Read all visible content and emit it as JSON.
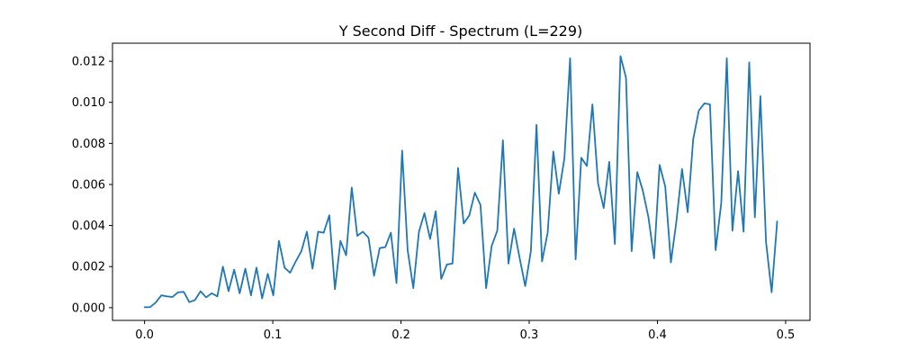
{
  "chart_data": {
    "type": "line",
    "title": "Y Second Diff - Spectrum (L=229)",
    "xlabel": "",
    "ylabel": "",
    "xlim": [
      -0.025,
      0.519
    ],
    "ylim": [
      -0.00062,
      0.01288
    ],
    "xticks": [
      0.0,
      0.1,
      0.2,
      0.3,
      0.4,
      0.5
    ],
    "xtick_labels": [
      "0.0",
      "0.1",
      "0.2",
      "0.3",
      "0.4",
      "0.5"
    ],
    "yticks": [
      0.0,
      0.002,
      0.004,
      0.006,
      0.008,
      0.01,
      0.012
    ],
    "ytick_labels": [
      "0.000",
      "0.002",
      "0.004",
      "0.006",
      "0.008",
      "0.010",
      "0.012"
    ],
    "grid": false,
    "color": "#1f77b4",
    "series": [
      {
        "x": [
          0.0,
          0.0044,
          0.0087,
          0.0131,
          0.0175,
          0.0218,
          0.0262,
          0.0306,
          0.0349,
          0.0393,
          0.0437,
          0.048,
          0.0524,
          0.0568,
          0.0611,
          0.0655,
          0.0699,
          0.0742,
          0.0786,
          0.083,
          0.0873,
          0.0917,
          0.0961,
          0.1004,
          0.1048,
          0.1092,
          0.1135,
          0.1179,
          0.1223,
          0.1266,
          0.131,
          0.1354,
          0.1397,
          0.1441,
          0.1485,
          0.1528,
          0.1572,
          0.1616,
          0.1659,
          0.1703,
          0.1747,
          0.179,
          0.1834,
          0.1878,
          0.1921,
          0.1965,
          0.2009,
          0.2052,
          0.2096,
          0.214,
          0.2183,
          0.2227,
          0.2271,
          0.2314,
          0.2358,
          0.2402,
          0.2445,
          0.2489,
          0.2533,
          0.2576,
          0.262,
          0.2664,
          0.2707,
          0.2751,
          0.2795,
          0.2838,
          0.2882,
          0.2926,
          0.2969,
          0.3013,
          0.3057,
          0.31,
          0.3144,
          0.3188,
          0.3231,
          0.3275,
          0.3319,
          0.3362,
          0.3406,
          0.345,
          0.3493,
          0.3537,
          0.3581,
          0.3624,
          0.3668,
          0.3712,
          0.3755,
          0.3799,
          0.3843,
          0.3886,
          0.393,
          0.3974,
          0.4017,
          0.4061,
          0.4105,
          0.4148,
          0.4192,
          0.4236,
          0.4279,
          0.4323,
          0.4367,
          0.441,
          0.4454,
          0.4498,
          0.4541,
          0.4585,
          0.4629,
          0.4672,
          0.4716,
          0.476,
          0.4803,
          0.4847,
          0.4891,
          0.4934
        ],
        "values": [
          2e-05,
          3e-05,
          0.00025,
          0.0006,
          0.00055,
          0.00052,
          0.00075,
          0.00077,
          0.00027,
          0.00037,
          0.0008,
          0.0005,
          0.0007,
          0.00055,
          0.002,
          0.0008,
          0.00185,
          0.0007,
          0.0019,
          0.0006,
          0.00195,
          0.00045,
          0.00165,
          0.0006,
          0.00325,
          0.00195,
          0.0017,
          0.00225,
          0.00275,
          0.0037,
          0.0019,
          0.0037,
          0.00365,
          0.0045,
          0.0009,
          0.00325,
          0.00255,
          0.00585,
          0.0035,
          0.0037,
          0.0034,
          0.00155,
          0.0029,
          0.00295,
          0.00365,
          0.0012,
          0.00765,
          0.0028,
          0.00095,
          0.0037,
          0.0046,
          0.00335,
          0.0047,
          0.0014,
          0.0021,
          0.00215,
          0.0068,
          0.0041,
          0.0045,
          0.0056,
          0.005,
          0.00095,
          0.003,
          0.00375,
          0.00815,
          0.00215,
          0.00385,
          0.0024,
          0.00105,
          0.00275,
          0.0089,
          0.00225,
          0.00365,
          0.0076,
          0.00555,
          0.0073,
          0.01215,
          0.00235,
          0.0073,
          0.0069,
          0.0099,
          0.00605,
          0.00485,
          0.0071,
          0.0031,
          0.01225,
          0.0112,
          0.00275,
          0.0066,
          0.0057,
          0.0044,
          0.0024,
          0.00695,
          0.0059,
          0.0022,
          0.0042,
          0.00675,
          0.00465,
          0.0082,
          0.0096,
          0.00995,
          0.0099,
          0.0028,
          0.0051,
          0.01215,
          0.00375,
          0.00665,
          0.0037,
          0.01195,
          0.0044,
          0.0103,
          0.0032,
          0.00075,
          0.0042
        ]
      }
    ]
  }
}
